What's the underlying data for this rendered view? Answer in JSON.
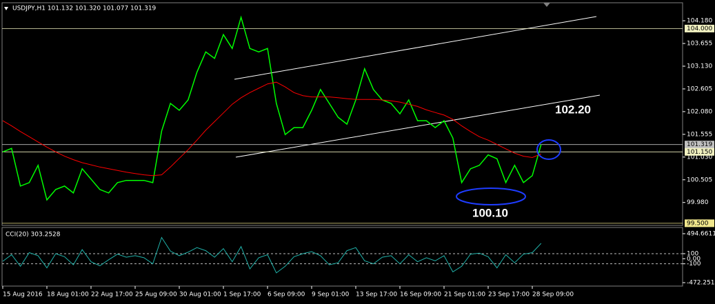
{
  "chart_data": [
    {
      "type": "line",
      "title": "USDJPY,H1  101.132 101.320 101.077 101.319",
      "categories": [
        "15 Aug 2016",
        null,
        null,
        null,
        null,
        "18 Aug 01:00",
        null,
        null,
        null,
        null,
        "22 Aug 17:00",
        null,
        null,
        null,
        null,
        "25 Aug 09:00",
        null,
        null,
        null,
        null,
        "30 Aug 01:00",
        null,
        null,
        null,
        null,
        "1 Sep 17:00",
        null,
        null,
        null,
        null,
        "6 Sep 09:00",
        null,
        null,
        null,
        null,
        "9 Sep 01:00",
        null,
        null,
        null,
        null,
        "13 Sep 17:00",
        null,
        null,
        null,
        null,
        "16 Sep 09:00",
        null,
        null,
        null,
        null,
        "21 Sep 01:00",
        null,
        null,
        null,
        null,
        "23 Sep 17:00",
        null,
        null,
        null,
        null,
        "28 Sep 09:00",
        null
      ],
      "series": [
        {
          "color": "#00ff00",
          "values": [
            101.15,
            101.23,
            100.36,
            100.44,
            100.84,
            100.04,
            100.28,
            100.36,
            100.2,
            100.76,
            100.52,
            100.28,
            100.2,
            100.44,
            100.49,
            100.49,
            100.49,
            100.44,
            101.63,
            102.27,
            102.11,
            102.35,
            102.99,
            103.46,
            103.31,
            103.86,
            103.54,
            104.26,
            103.54,
            103.46,
            103.54,
            102.27,
            101.55,
            101.71,
            101.71,
            102.11,
            102.59,
            102.27,
            101.95,
            101.79,
            102.35,
            103.07,
            102.59,
            102.35,
            102.27,
            102.03,
            102.35,
            101.87,
            101.87,
            101.71,
            101.87,
            101.47,
            100.44,
            100.76,
            100.84,
            101.08,
            100.99,
            100.44,
            100.84,
            100.44,
            100.6,
            101.319
          ]
        },
        {
          "color": "#ff0000",
          "values": [
            101.87,
            101.75,
            101.62,
            101.5,
            101.38,
            101.26,
            101.15,
            101.05,
            100.97,
            100.9,
            100.85,
            100.8,
            100.76,
            100.72,
            100.68,
            100.65,
            100.62,
            100.6,
            100.62,
            100.8,
            101.0,
            101.2,
            101.42,
            101.65,
            101.85,
            102.05,
            102.25,
            102.4,
            102.52,
            102.62,
            102.72,
            102.76,
            102.65,
            102.52,
            102.45,
            102.42,
            102.42,
            102.42,
            102.4,
            102.38,
            102.36,
            102.36,
            102.36,
            102.35,
            102.33,
            102.3,
            102.25,
            102.2,
            102.12,
            102.06,
            102.0,
            101.9,
            101.75,
            101.62,
            101.5,
            101.42,
            101.32,
            101.22,
            101.12,
            101.05,
            101.02,
            101.1
          ]
        }
      ],
      "ylim": [
        99.45,
        104.58
      ],
      "yticks": [
        {
          "value": 104.18,
          "label": "104.180"
        },
        103.655,
        {
          "value": 103.13,
          "label": "103.130"
        },
        102.605,
        {
          "value": 102.08,
          "label": "102.080"
        },
        101.555,
        {
          "value": 101.03,
          "label": "101.030"
        },
        100.505,
        {
          "value": 99.98,
          "label": "99.980"
        }
      ],
      "levels": [
        {
          "value": 104,
          "label": "104.000",
          "color": "#f0f0c0"
        },
        {
          "value": 101.319,
          "color": "#c0c0c0"
        },
        {
          "value": 101.15,
          "label": "101.150",
          "color": "#f0f0c0"
        },
        {
          "value": 99.5,
          "label": "99.500",
          "color": "#f0e68c"
        }
      ],
      "annotations": [
        "102.20",
        "100.10"
      ]
    },
    {
      "type": "line",
      "title": "CCI(20) 303.2528",
      "series": [
        {
          "color": "#20b2aa",
          "values": [
            -50,
            80,
            -150,
            120,
            60,
            -180,
            100,
            40,
            -120,
            180,
            -60,
            -140,
            -20,
            90,
            30,
            60,
            20,
            -100,
            420,
            150,
            60,
            130,
            220,
            160,
            30,
            200,
            -60,
            240,
            -200,
            20,
            80,
            -280,
            -150,
            40,
            100,
            140,
            60,
            -120,
            -80,
            160,
            220,
            -40,
            -100,
            30,
            60,
            -100,
            80,
            -60,
            20,
            -40,
            60,
            -260,
            -150,
            90,
            110,
            40,
            -180,
            80,
            -80,
            90,
            120,
            303.2528
          ]
        }
      ],
      "ylim": [
        -540,
        617
      ],
      "yticks": [
        494.6611,
        100,
        {
          "value": 0,
          "label": "0.00"
        },
        -100,
        -472.2514
      ],
      "dashed_levels": [
        100,
        -100
      ]
    }
  ]
}
